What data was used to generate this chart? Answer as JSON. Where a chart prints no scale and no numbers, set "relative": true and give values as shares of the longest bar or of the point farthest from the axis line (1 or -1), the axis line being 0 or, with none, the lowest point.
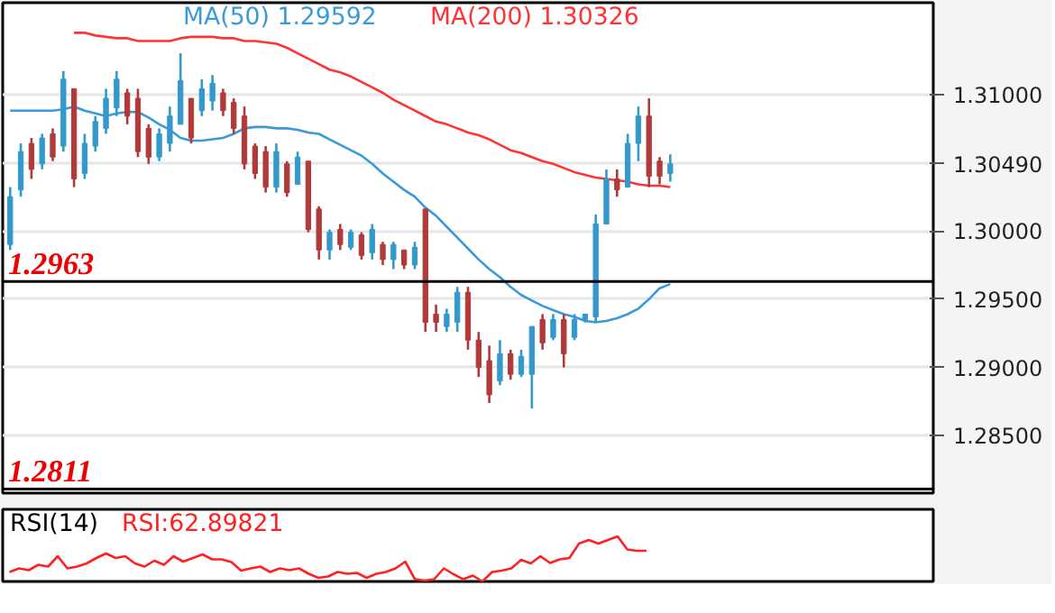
{
  "chart_data": [
    {
      "type": "candlestick",
      "categories": [
        null,
        null,
        null,
        null,
        null,
        null,
        null,
        null,
        null,
        null,
        null,
        null,
        null,
        null,
        null,
        null,
        null,
        null,
        null,
        null,
        null,
        null,
        null,
        null,
        null,
        null,
        null,
        null,
        null,
        null,
        null,
        null,
        null,
        null,
        null,
        null,
        null,
        null,
        null,
        null,
        null,
        null,
        null,
        null,
        null,
        null,
        null,
        null,
        null,
        null,
        null,
        null,
        null,
        null,
        null,
        null,
        null,
        null,
        null,
        null,
        null,
        null,
        null,
        null,
        null,
        null,
        null,
        null,
        null,
        null,
        null,
        null,
        null,
        null,
        null,
        null,
        null,
        null,
        null,
        null,
        null,
        null,
        null,
        null,
        null,
        null,
        null
      ],
      "ohlc": [
        [
          1.299,
          1.3032,
          1.2986,
          1.3025
        ],
        [
          1.303,
          1.3064,
          1.3025,
          1.3058
        ],
        [
          1.3064,
          1.3068,
          1.3038,
          1.3045
        ],
        [
          1.3049,
          1.3071,
          1.3045,
          1.3068
        ],
        [
          1.3071,
          1.3075,
          1.3051,
          1.3054
        ],
        [
          1.3062,
          1.3117,
          1.3058,
          1.3111
        ],
        [
          1.3104,
          1.3104,
          1.3032,
          1.3038
        ],
        [
          1.3042,
          1.3071,
          1.3038,
          1.3064
        ],
        [
          1.3062,
          1.3084,
          1.3058,
          1.308
        ],
        [
          1.3075,
          1.3104,
          1.3071,
          1.3097
        ],
        [
          1.309,
          1.3117,
          1.3084,
          1.3111
        ],
        [
          1.3101,
          1.3104,
          1.3078,
          1.3084
        ],
        [
          1.3097,
          1.3104,
          1.3054,
          1.3058
        ],
        [
          1.3075,
          1.3078,
          1.3049,
          1.3054
        ],
        [
          1.3054,
          1.3075,
          1.3051,
          1.3071
        ],
        [
          1.3064,
          1.3091,
          1.3058,
          1.3084
        ],
        [
          1.3078,
          1.313,
          1.3078,
          1.311
        ],
        [
          1.3097,
          1.3097,
          1.3064,
          1.3068
        ],
        [
          1.3088,
          1.3111,
          1.3084,
          1.3104
        ],
        [
          1.3095,
          1.3114,
          1.3088,
          1.3108
        ],
        [
          1.3101,
          1.3104,
          1.3084,
          1.3088
        ],
        [
          1.3094,
          1.3097,
          1.3071,
          1.3075
        ],
        [
          1.3084,
          1.3091,
          1.3045,
          1.3049
        ],
        [
          1.3062,
          1.3064,
          1.3038,
          1.3042
        ],
        [
          1.3058,
          1.3062,
          1.3028,
          1.3032
        ],
        [
          1.3032,
          1.3064,
          1.3028,
          1.3058
        ],
        [
          1.3049,
          1.3051,
          1.3025,
          1.3028
        ],
        [
          1.3034,
          1.3058,
          1.3034,
          1.3054
        ],
        [
          1.3051,
          1.3051,
          1.2999,
          1.3001
        ],
        [
          1.3016,
          1.3018,
          1.2979,
          1.2986
        ],
        [
          1.2986,
          1.3001,
          1.2979,
          1.2999
        ],
        [
          1.3001,
          1.3005,
          1.2986,
          1.299
        ],
        [
          1.2988,
          1.3001,
          1.2986,
          1.2999
        ],
        [
          1.2997,
          1.2999,
          1.2979,
          1.2982
        ],
        [
          1.2984,
          1.3005,
          1.2979,
          1.3001
        ],
        [
          1.299,
          1.2992,
          1.2975,
          1.2979
        ],
        [
          1.2979,
          1.2992,
          1.2972,
          1.299
        ],
        [
          1.2986,
          1.2986,
          1.2972,
          1.2975
        ],
        [
          1.2975,
          1.2992,
          1.2972,
          1.2988
        ],
        [
          1.3016,
          1.3016,
          1.2926,
          1.2933
        ],
        [
          1.2939,
          1.2946,
          1.2926,
          1.2933
        ],
        [
          1.293,
          1.2943,
          1.2926,
          1.2939
        ],
        [
          1.2933,
          1.2959,
          1.2926,
          1.2955
        ],
        [
          1.2955,
          1.2959,
          1.2913,
          1.292
        ],
        [
          1.292,
          1.2926,
          1.2893,
          1.29
        ],
        [
          1.2905,
          1.2916,
          1.2874,
          1.288
        ],
        [
          1.289,
          1.292,
          1.2887,
          1.291
        ],
        [
          1.291,
          1.2913,
          1.2891,
          1.2895
        ],
        [
          1.2895,
          1.2913,
          1.2893,
          1.2908
        ],
        [
          1.2895,
          1.293,
          1.287,
          1.293
        ],
        [
          1.2935,
          1.2939,
          1.2913,
          1.2918
        ],
        [
          1.2922,
          1.2939,
          1.292,
          1.2935
        ],
        [
          1.2935,
          1.2939,
          1.29,
          1.291
        ],
        [
          1.2922,
          1.2939,
          1.292,
          1.2935
        ],
        [
          1.2935,
          1.2939,
          1.2933,
          1.2939
        ],
        [
          1.2937,
          1.3012,
          1.2933,
          1.3005
        ],
        [
          1.3005,
          1.3045,
          1.3005,
          1.3038
        ],
        [
          1.3038,
          1.3045,
          1.3025,
          1.303
        ],
        [
          1.3032,
          1.3071,
          1.3032,
          1.3064
        ],
        [
          1.3064,
          1.3091,
          1.3051,
          1.3084
        ],
        [
          1.3084,
          1.3097,
          1.3032,
          1.304
        ],
        [
          1.3051,
          1.3054,
          1.3034,
          1.304
        ],
        [
          1.3042,
          1.3056,
          1.3036,
          1.3049
        ],
        null,
        null,
        null,
        null,
        null,
        null,
        null,
        null,
        null,
        null,
        null,
        null,
        null,
        null,
        null,
        null,
        null,
        null,
        null,
        null,
        null,
        null,
        null,
        null
      ],
      "colors": [
        "#3399cc",
        "#3399cc",
        "#b03a3a",
        "#3399cc",
        "#b03a3a",
        "#3399cc",
        "#b03a3a",
        "#3399cc",
        "#3399cc",
        "#3399cc",
        "#3399cc",
        "#b03a3a",
        "#b03a3a",
        "#b03a3a",
        "#3399cc",
        "#3399cc",
        "#3399cc",
        "#b03a3a",
        "#3399cc",
        "#3399cc",
        "#b03a3a",
        "#b03a3a",
        "#b03a3a",
        "#b03a3a",
        "#b03a3a",
        "#3399cc",
        "#b03a3a",
        "#3399cc",
        "#b03a3a",
        "#b03a3a",
        "#3399cc",
        "#b03a3a",
        "#3399cc",
        "#b03a3a",
        "#3399cc",
        "#b03a3a",
        "#3399cc",
        "#b03a3a",
        "#3399cc",
        "#b03a3a",
        "#b03a3a",
        "#3399cc",
        "#3399cc",
        "#b03a3a",
        "#b03a3a",
        "#b03a3a",
        "#3399cc",
        "#b03a3a",
        "#3399cc",
        "#3399cc",
        "#b03a3a",
        "#3399cc",
        "#b03a3a",
        "#3399cc",
        "#3399cc",
        "#3399cc",
        "#3399cc",
        "#b03a3a",
        "#3399cc",
        "#3399cc",
        "#b03a3a",
        "#b03a3a",
        "#3399cc",
        null,
        null,
        null,
        null,
        null,
        null,
        null,
        null,
        null,
        null,
        null,
        null,
        null,
        null,
        null,
        null,
        null,
        null,
        null,
        null,
        null,
        null,
        null,
        null
      ],
      "series": [
        {
          "type": "line",
          "name": "MA(50)  1.29592",
          "color": "#3a9ad9",
          "values": [
            1.3088,
            1.3088,
            1.3088,
            1.3088,
            1.3088,
            1.3089,
            1.3091,
            1.3088,
            1.3086,
            1.3084,
            1.3086,
            1.3087,
            1.3087,
            1.3083,
            1.3078,
            1.3074,
            1.3068,
            1.3066,
            1.3066,
            1.3067,
            1.3068,
            1.3071,
            1.3075,
            1.3076,
            1.3076,
            1.3075,
            1.3075,
            1.3074,
            1.3072,
            1.3071,
            1.3067,
            1.3063,
            1.3059,
            1.3055,
            1.3049,
            1.3042,
            1.3036,
            1.303,
            1.3025,
            1.3017,
            1.3011,
            1.3003,
            1.2995,
            1.2987,
            1.2979,
            1.2972,
            1.2966,
            1.2959,
            1.2953,
            1.2949,
            1.2945,
            1.2942,
            1.2939,
            1.2937,
            1.2934,
            1.2933,
            1.2934,
            1.2936,
            1.2939,
            1.2943,
            1.295,
            1.2958,
            1.2961,
            null,
            null,
            null,
            null,
            null,
            null,
            null,
            null,
            null,
            null,
            null,
            null,
            null,
            null,
            null,
            null,
            null,
            null,
            null,
            null,
            null,
            null,
            null,
            null
          ]
        },
        {
          "type": "line",
          "name": "MA(200)  1.30326",
          "color": "#ff3333",
          "values": [
            null,
            null,
            null,
            null,
            null,
            null,
            1.3145,
            1.3145,
            1.3143,
            1.3142,
            1.3141,
            1.3141,
            1.3139,
            1.3139,
            1.3139,
            1.3139,
            1.3141,
            1.3142,
            1.3142,
            1.3142,
            1.3141,
            1.3141,
            1.3139,
            1.3139,
            1.3138,
            1.3137,
            1.3134,
            1.313,
            1.3126,
            1.3122,
            1.3118,
            1.3116,
            1.3113,
            1.3109,
            1.3105,
            1.3101,
            1.3096,
            1.3092,
            1.3088,
            1.3084,
            1.308,
            1.3078,
            1.3075,
            1.3072,
            1.307,
            1.3067,
            1.3063,
            1.3059,
            1.3057,
            1.3054,
            1.3051,
            1.3049,
            1.3046,
            1.3043,
            1.3041,
            1.3039,
            1.3038,
            1.3037,
            1.3036,
            1.3034,
            1.3033,
            1.3033,
            1.3032,
            null,
            null,
            null,
            null,
            null,
            null,
            null,
            null,
            null,
            null,
            null,
            null,
            null,
            null,
            null,
            null,
            null,
            null,
            null,
            null,
            null,
            null,
            null,
            null
          ]
        }
      ],
      "ylim": [
        1.2808,
        1.3167
      ],
      "yticks": [
        {
          "value": 1.285,
          "label": "1.28500"
        },
        {
          "value": 1.29,
          "label": "1.29000"
        },
        {
          "value": 1.295,
          "label": "1.29500"
        },
        {
          "value": 1.3,
          "label": "1.30000"
        },
        {
          "value": 1.3049,
          "label": "1.30490"
        },
        {
          "value": 1.305,
          "label": null
        },
        {
          "value": 1.31,
          "label": "1.31000"
        }
      ],
      "grid": "y",
      "tick_labels": "y",
      "legend": "top left",
      "ref_lines": [
        {
          "axis": "y",
          "value": 1.2963,
          "label": "1.2963",
          "color": "#000000"
        },
        {
          "axis": "y",
          "value": 1.2811,
          "label": "1.2811",
          "color": "#000000"
        }
      ]
    },
    {
      "type": "line",
      "title": "RSI(14)",
      "relative": true,
      "categories": [
        null,
        null,
        null,
        null,
        null,
        null,
        null,
        null,
        null,
        null,
        null,
        null,
        null,
        null,
        null,
        null,
        null,
        null,
        null,
        null,
        null,
        null,
        null,
        null,
        null,
        null,
        null,
        null,
        null,
        null,
        null,
        null,
        null,
        null,
        null,
        null,
        null,
        null,
        null,
        null,
        null,
        null,
        null,
        null,
        null,
        null,
        null,
        null,
        null,
        null,
        null,
        null,
        null,
        null,
        null,
        null,
        null,
        null,
        null,
        null,
        null,
        null,
        null,
        null,
        null,
        null,
        null,
        null,
        null,
        null,
        null,
        null,
        null,
        null,
        null,
        null,
        null,
        null,
        null,
        null,
        null,
        null,
        null,
        null,
        null,
        null,
        null,
        null,
        null,
        null,
        null,
        null,
        null,
        null,
        null,
        null
      ],
      "series": [
        {
          "name": "RSI:62.89821",
          "color": "#ff2020",
          "values": [
            0.21,
            0.29,
            0.25,
            0.37,
            0.33,
            0.56,
            0.29,
            0.33,
            0.4,
            0.52,
            0.62,
            0.52,
            0.56,
            0.4,
            0.33,
            0.46,
            0.37,
            0.56,
            0.44,
            0.52,
            0.6,
            0.49,
            0.49,
            0.43,
            0.24,
            0.29,
            0.33,
            0.21,
            0.29,
            0.25,
            0.29,
            0.17,
            0.08,
            0.11,
            0.21,
            0.17,
            0.19,
            0.08,
            0.17,
            0.21,
            0.29,
            0.44,
            0.05,
            0.02,
            0.05,
            0.29,
            0.16,
            0.05,
            0.13,
            0,
            0.21,
            0.24,
            0.29,
            0.48,
            0.4,
            0.56,
            0.41,
            0.49,
            0.52,
            0.84,
            0.92,
            0.84,
            0.92,
            1.0,
            0.71,
            0.68,
            0.68,
            null,
            null,
            null,
            null,
            null,
            null,
            null,
            null,
            null,
            null,
            null,
            null,
            null,
            null,
            null,
            null,
            null,
            null,
            null,
            null,
            null,
            null,
            null,
            null,
            null,
            null,
            null,
            null,
            null
          ]
        }
      ],
      "legend": "top left"
    }
  ]
}
